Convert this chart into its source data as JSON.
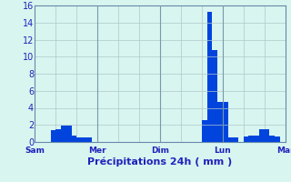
{
  "title": "Précipitations 24h ( mm )",
  "bar_color": "#0044dd",
  "bg_color": "#d8f5f0",
  "grid_color": "#b0c8c8",
  "axis_color": "#5577aa",
  "tick_label_color": "#2222bb",
  "ylim": [
    0,
    16
  ],
  "yticks": [
    0,
    2,
    4,
    6,
    8,
    10,
    12,
    14,
    16
  ],
  "num_bars": 48,
  "bar_values": [
    0,
    0,
    0,
    1.4,
    1.5,
    1.9,
    1.9,
    0.7,
    0.5,
    0.5,
    0.5,
    0,
    0,
    0,
    0,
    0,
    0,
    0,
    0,
    0,
    0,
    0,
    0,
    0,
    0,
    0,
    0,
    0,
    0,
    0,
    0,
    0,
    2.6,
    15.3,
    10.8,
    4.7,
    4.7,
    0.5,
    0.5,
    0,
    0.6,
    0.7,
    0.7,
    1.5,
    1.5,
    0.7,
    0.6,
    0
  ],
  "day_labels": [
    "Sam",
    "Mer",
    "Dim",
    "Lun",
    "Mar"
  ],
  "day_tick_positions": [
    0,
    12,
    24,
    36,
    48
  ],
  "vline_positions": [
    12,
    24,
    36
  ]
}
